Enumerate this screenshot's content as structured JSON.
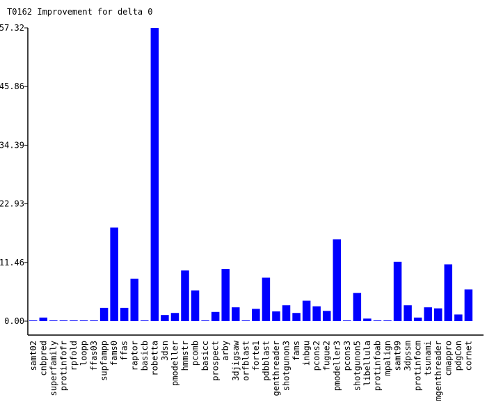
{
  "chart_data": {
    "type": "bar",
    "title": "T0162 Improvement for delta 0",
    "xlabel": "",
    "ylabel": "",
    "ylim": [
      0,
      57.32
    ],
    "yticks": [
      "0.00",
      "11.46",
      "22.93",
      "34.39",
      "45.86",
      "57.32"
    ],
    "grid": false,
    "legend": "none",
    "bar_color": "#0000ff",
    "categories": [
      "samt02",
      "cnbpred",
      "superfamily",
      "protinfofr",
      "rpfold",
      "loopp",
      "ffas03",
      "supfampp",
      "fams0",
      "ffas",
      "raptor",
      "basicb",
      "robetta",
      "3dsn",
      "pmodeller",
      "hmmstr",
      "pcomb",
      "basicc",
      "prospect",
      "arby",
      "3djigsaw",
      "orfblast",
      "forte1",
      "pdbblast",
      "genthreader",
      "shotgunon3",
      "fams",
      "inbgu",
      "pcons2",
      "fugue2",
      "pmodeller3",
      "pcons3",
      "shotgunon5",
      "libellula",
      "protinfoab",
      "mpalign",
      "samt99",
      "3dpssm",
      "protinfocm",
      "tsunami",
      "mgenthreader",
      "cmappro",
      "pdgCon",
      "cornet"
    ],
    "values": [
      0.0,
      0.7,
      0.0,
      0.0,
      0.0,
      0.0,
      0.0,
      2.6,
      18.3,
      2.6,
      8.3,
      0.0,
      57.32,
      1.2,
      1.6,
      9.9,
      6.0,
      0.0,
      1.8,
      10.2,
      2.7,
      0.0,
      2.4,
      8.5,
      1.9,
      3.1,
      1.6,
      4.0,
      2.9,
      2.0,
      16.0,
      0.0,
      5.5,
      0.5,
      0.0,
      0.0,
      11.6,
      3.1,
      0.7,
      2.7,
      2.5,
      11.1,
      1.3,
      6.2
    ]
  }
}
